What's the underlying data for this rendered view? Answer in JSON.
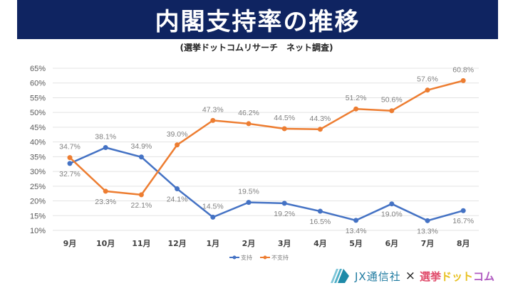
{
  "header": {
    "title": "内閣支持率の推移",
    "subtitle": "(選挙ドットコムリサーチ　ネット調査)"
  },
  "footer": {
    "logo_jx": "JX通信社",
    "logo_x": "×",
    "logo_sen_parts": [
      "選挙",
      "ドット",
      "コム"
    ],
    "logo_sen_colors": [
      "#e04a6a",
      "#e8c020",
      "#b05ac0"
    ]
  },
  "chart_data": {
    "type": "line",
    "title": "内閣支持率の推移",
    "subtitle": "(選挙ドットコムリサーチ　ネット調査)",
    "xlabel": "",
    "ylabel": "",
    "categories": [
      "9月",
      "10月",
      "11月",
      "12月",
      "1月",
      "2月",
      "3月",
      "4月",
      "5月",
      "6月",
      "7月",
      "8月"
    ],
    "ylim": [
      10,
      65
    ],
    "ytick_step": 5,
    "ytick_format": "%",
    "grid": true,
    "legend_position": "bottom",
    "series": [
      {
        "name": "支持",
        "color": "#4472c4",
        "values": [
          32.7,
          38.1,
          34.9,
          24.1,
          14.5,
          19.5,
          19.2,
          16.5,
          13.4,
          19.0,
          13.3,
          16.7
        ],
        "labels": [
          "32.7%",
          "38.1%",
          "34.9%",
          "24.1%",
          "14.5%",
          "19.5%",
          "19.2%",
          "16.5%",
          "13.4%",
          "19.0%",
          "13.3%",
          "16.7%"
        ],
        "label_pos": [
          "below",
          "above",
          "above",
          "below",
          "above",
          "above",
          "below",
          "below",
          "below",
          "below",
          "below",
          "below"
        ]
      },
      {
        "name": "不支持",
        "color": "#ed7d31",
        "values": [
          34.7,
          23.3,
          22.1,
          39.0,
          47.3,
          46.2,
          44.5,
          44.3,
          51.2,
          50.6,
          57.6,
          60.8
        ],
        "labels": [
          "34.7%",
          "23.3%",
          "22.1%",
          "39.0%",
          "47.3%",
          "46.2%",
          "44.5%",
          "44.3%",
          "51.2%",
          "50.6%",
          "57.6%",
          "60.8%"
        ],
        "label_pos": [
          "above",
          "below",
          "below",
          "above",
          "above",
          "above",
          "above",
          "above",
          "above",
          "above",
          "above",
          "above"
        ]
      }
    ]
  }
}
